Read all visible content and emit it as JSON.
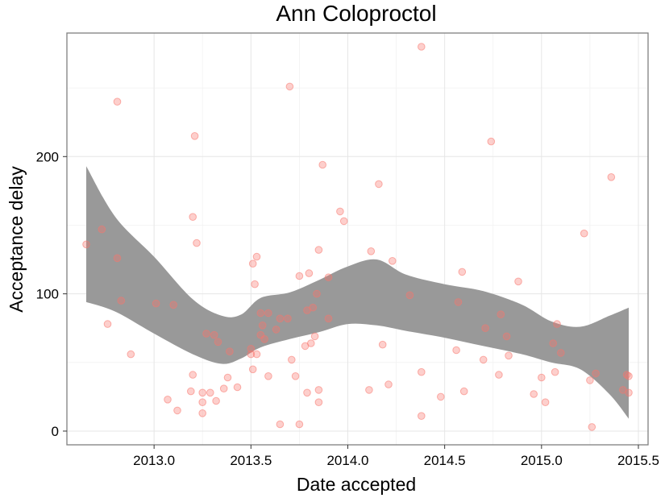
{
  "chart_data": {
    "type": "scatter",
    "title": "Ann Coloproctol",
    "xlabel": "Date accepted",
    "ylabel": "Acceptance delay",
    "xlim": [
      2012.55,
      2015.55
    ],
    "ylim": [
      -10,
      290
    ],
    "x_ticks": [
      2013.0,
      2013.5,
      2014.0,
      2014.5,
      2015.0,
      2015.5
    ],
    "x_tick_labels": [
      "2013.0",
      "2013.5",
      "2014.0",
      "2014.5",
      "2015.0",
      "2015.5"
    ],
    "y_ticks": [
      0,
      100,
      200
    ],
    "y_tick_labels": [
      "0",
      "100",
      "200"
    ],
    "grid": true,
    "point_color": "#f8766d",
    "band_color": "#999999",
    "series": [
      {
        "type": "scatter",
        "points": [
          [
            2012.65,
            136
          ],
          [
            2012.73,
            147
          ],
          [
            2012.76,
            78
          ],
          [
            2012.81,
            240
          ],
          [
            2012.81,
            126
          ],
          [
            2012.83,
            95
          ],
          [
            2012.88,
            56
          ],
          [
            2013.01,
            93
          ],
          [
            2013.07,
            23
          ],
          [
            2013.1,
            92
          ],
          [
            2013.12,
            15
          ],
          [
            2013.19,
            29
          ],
          [
            2013.2,
            41
          ],
          [
            2013.2,
            156
          ],
          [
            2013.21,
            215
          ],
          [
            2013.22,
            137
          ],
          [
            2013.25,
            28
          ],
          [
            2013.25,
            21
          ],
          [
            2013.25,
            13
          ],
          [
            2013.27,
            71
          ],
          [
            2013.29,
            28
          ],
          [
            2013.31,
            70
          ],
          [
            2013.32,
            22
          ],
          [
            2013.33,
            65
          ],
          [
            2013.36,
            31
          ],
          [
            2013.38,
            39
          ],
          [
            2013.39,
            58
          ],
          [
            2013.43,
            32
          ],
          [
            2013.5,
            60
          ],
          [
            2013.5,
            56
          ],
          [
            2013.51,
            122
          ],
          [
            2013.51,
            45
          ],
          [
            2013.52,
            107
          ],
          [
            2013.53,
            127
          ],
          [
            2013.53,
            56
          ],
          [
            2013.55,
            86
          ],
          [
            2013.55,
            70
          ],
          [
            2013.56,
            77
          ],
          [
            2013.57,
            67
          ],
          [
            2013.59,
            86
          ],
          [
            2013.59,
            40
          ],
          [
            2013.63,
            74
          ],
          [
            2013.65,
            82
          ],
          [
            2013.65,
            5
          ],
          [
            2013.69,
            82
          ],
          [
            2013.7,
            251
          ],
          [
            2013.71,
            52
          ],
          [
            2013.73,
            40
          ],
          [
            2013.75,
            113
          ],
          [
            2013.75,
            5
          ],
          [
            2013.78,
            62
          ],
          [
            2013.79,
            28
          ],
          [
            2013.79,
            88
          ],
          [
            2013.8,
            115
          ],
          [
            2013.81,
            64
          ],
          [
            2013.82,
            90
          ],
          [
            2013.83,
            69
          ],
          [
            2013.84,
            100
          ],
          [
            2013.85,
            132
          ],
          [
            2013.85,
            30
          ],
          [
            2013.85,
            21
          ],
          [
            2013.87,
            194
          ],
          [
            2013.9,
            112
          ],
          [
            2013.9,
            82
          ],
          [
            2013.96,
            160
          ],
          [
            2013.98,
            153
          ],
          [
            2014.11,
            30
          ],
          [
            2014.12,
            131
          ],
          [
            2014.16,
            180
          ],
          [
            2014.18,
            63
          ],
          [
            2014.21,
            34
          ],
          [
            2014.23,
            124
          ],
          [
            2014.32,
            99
          ],
          [
            2014.38,
            280
          ],
          [
            2014.38,
            43
          ],
          [
            2014.38,
            11
          ],
          [
            2014.48,
            25
          ],
          [
            2014.56,
            59
          ],
          [
            2014.57,
            94
          ],
          [
            2014.59,
            116
          ],
          [
            2014.6,
            29
          ],
          [
            2014.7,
            52
          ],
          [
            2014.71,
            75
          ],
          [
            2014.74,
            211
          ],
          [
            2014.78,
            41
          ],
          [
            2014.79,
            85
          ],
          [
            2014.82,
            69
          ],
          [
            2014.83,
            55
          ],
          [
            2014.88,
            109
          ],
          [
            2014.96,
            27
          ],
          [
            2015.0,
            39
          ],
          [
            2015.02,
            21
          ],
          [
            2015.06,
            64
          ],
          [
            2015.07,
            43
          ],
          [
            2015.08,
            78
          ],
          [
            2015.1,
            57
          ],
          [
            2015.22,
            144
          ],
          [
            2015.25,
            37
          ],
          [
            2015.26,
            3
          ],
          [
            2015.28,
            42
          ],
          [
            2015.36,
            185
          ],
          [
            2015.42,
            30
          ],
          [
            2015.44,
            41
          ],
          [
            2015.45,
            28
          ],
          [
            2015.45,
            40
          ]
        ]
      },
      {
        "type": "confidence_band",
        "x": [
          2012.65,
          2012.8,
          2013.0,
          2013.2,
          2013.35,
          2013.45,
          2013.55,
          2013.7,
          2013.85,
          2014.0,
          2014.15,
          2014.3,
          2014.5,
          2014.7,
          2014.9,
          2015.05,
          2015.2,
          2015.35,
          2015.45
        ],
        "upper": [
          193,
          156,
          127,
          96,
          84,
          85,
          97,
          101,
          110,
          120,
          125,
          114,
          107,
          102,
          92,
          80,
          76,
          84,
          90
        ],
        "lower": [
          94,
          87,
          71,
          56,
          49,
          53,
          61,
          67,
          72,
          78,
          77,
          73,
          68,
          62,
          56,
          50,
          45,
          27,
          9
        ]
      }
    ]
  }
}
